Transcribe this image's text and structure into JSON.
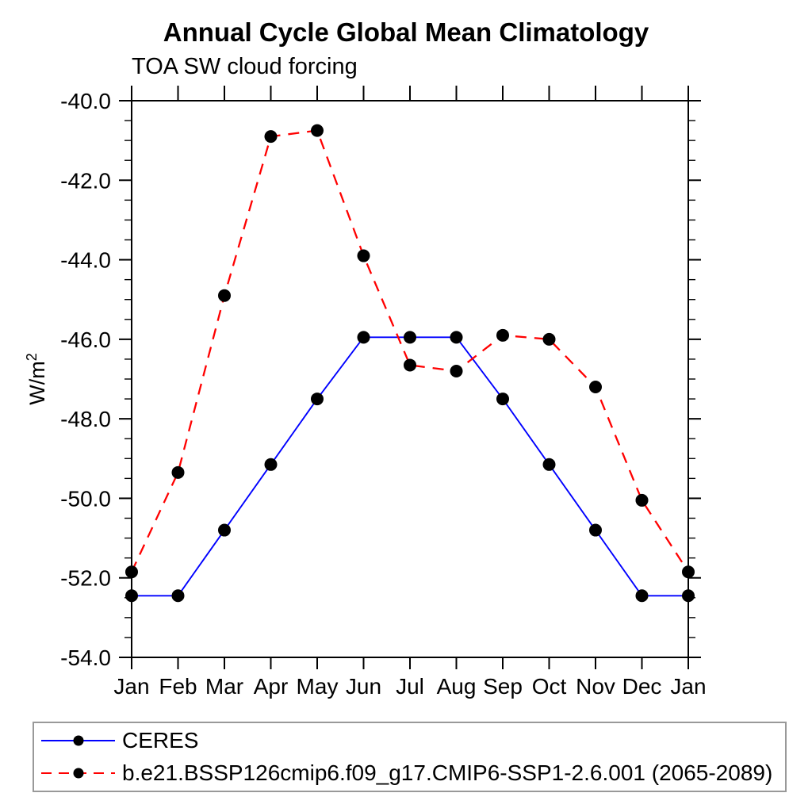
{
  "chart_data": {
    "type": "line",
    "title": "Annual Cycle Global Mean Climatology",
    "subtitle": "TOA SW cloud forcing",
    "xlabel": "",
    "ylabel": "W/m^2",
    "ylabel_parts": {
      "base": "W/m",
      "exponent": "2"
    },
    "x_categories": [
      "Jan",
      "Feb",
      "Mar",
      "Apr",
      "May",
      "Jun",
      "Jul",
      "Aug",
      "Sep",
      "Oct",
      "Nov",
      "Dec",
      "Jan"
    ],
    "ylim": [
      -54.0,
      -40.0
    ],
    "ytick_major_step": 2.0,
    "ytick_minor_step": 0.5,
    "ytick_labels": [
      "-40.0",
      "-42.0",
      "-44.0",
      "-46.0",
      "-48.0",
      "-50.0",
      "-52.0",
      "-54.0"
    ],
    "grid": false,
    "legend_position": "bottom-left",
    "axis_color": "#000000",
    "marker_color": "#000000",
    "series": [
      {
        "name": "CERES",
        "color": "#0000ff",
        "line_style": "solid",
        "marker": "filled-circle",
        "values": [
          -52.45,
          -52.45,
          -50.8,
          -49.15,
          -47.5,
          -45.95,
          -45.95,
          -45.95,
          -47.5,
          -49.15,
          -50.8,
          -52.45,
          -52.45
        ]
      },
      {
        "name": "b.e21.BSSP126cmip6.f09_g17.CMIP6-SSP1-2.6.001 (2065-2089)",
        "color": "#ff0000",
        "line_style": "dashed",
        "marker": "filled-circle",
        "values": [
          -51.85,
          -49.35,
          -44.9,
          -40.9,
          -40.75,
          -43.9,
          -46.65,
          -46.8,
          -45.9,
          -46.0,
          -47.2,
          -50.05,
          -51.85
        ]
      }
    ]
  }
}
